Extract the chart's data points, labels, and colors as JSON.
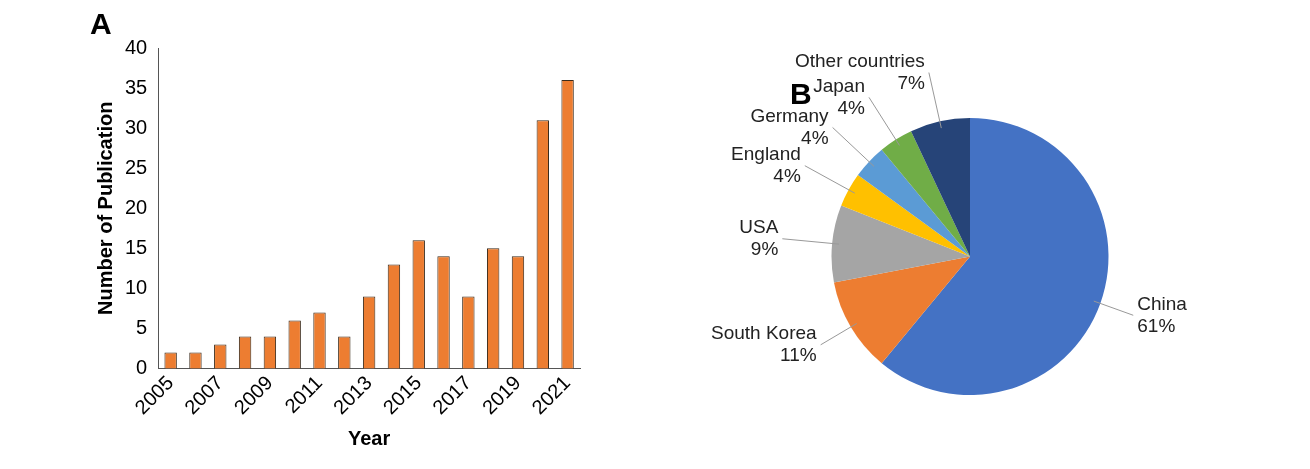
{
  "chart_data": [
    {
      "type": "bar",
      "title": "A",
      "xlabel": "Year",
      "ylabel": "Number of Publication",
      "categories": [
        "2005",
        null,
        "2007",
        null,
        "2009",
        null,
        "2011",
        null,
        "2013",
        null,
        "2015",
        null,
        "2017",
        null,
        "2019",
        null,
        "2021"
      ],
      "values": [
        2,
        2,
        3,
        4,
        4,
        6,
        7,
        4,
        9,
        13,
        16,
        14,
        9,
        15,
        14,
        31,
        36
      ],
      "color": "#ed7d31",
      "ylim": [
        0,
        40
      ],
      "yticks": [
        0,
        5,
        10,
        15,
        20,
        25,
        30,
        35,
        40
      ],
      "grid": false,
      "legend": false
    },
    {
      "type": "pie",
      "title": "B",
      "categories": [
        "China",
        "South Korea",
        "USA",
        "England",
        "Germany",
        "Japan",
        "Other countries"
      ],
      "values": [
        61,
        11,
        9,
        4,
        4,
        4,
        7
      ],
      "colors": [
        "#4472c4",
        "#ed7d31",
        "#a5a5a5",
        "#ffc000",
        "#5b9bd5",
        "#70ad47",
        "#264478"
      ],
      "value_labels": [
        "61%",
        "11%",
        "9%",
        "4%",
        "4%",
        "4%",
        "7%"
      ],
      "legend": false
    }
  ]
}
